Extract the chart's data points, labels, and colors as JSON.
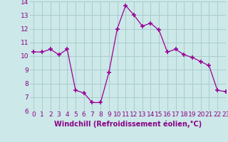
{
  "x": [
    0,
    1,
    2,
    3,
    4,
    5,
    6,
    7,
    8,
    9,
    10,
    11,
    12,
    13,
    14,
    15,
    16,
    17,
    18,
    19,
    20,
    21,
    22,
    23
  ],
  "y": [
    10.3,
    10.3,
    10.5,
    10.1,
    10.5,
    7.5,
    7.3,
    6.6,
    6.6,
    8.8,
    12.0,
    13.7,
    13.0,
    12.2,
    12.4,
    11.9,
    10.3,
    10.5,
    10.1,
    9.9,
    9.6,
    9.3,
    7.5,
    7.4
  ],
  "line_color": "#990099",
  "marker": "+",
  "marker_size": 4,
  "xlabel": "Windchill (Refroidissement éolien,°C)",
  "xlim": [
    -0.5,
    23
  ],
  "ylim": [
    6,
    14
  ],
  "yticks": [
    6,
    7,
    8,
    9,
    10,
    11,
    12,
    13,
    14
  ],
  "xticks": [
    0,
    1,
    2,
    3,
    4,
    5,
    6,
    7,
    8,
    9,
    10,
    11,
    12,
    13,
    14,
    15,
    16,
    17,
    18,
    19,
    20,
    21,
    22,
    23
  ],
  "bg_color": "#cce8e8",
  "grid_color": "#aacccc",
  "tick_label_color": "#880088",
  "xlabel_color": "#880088",
  "xlabel_fontsize": 7,
  "tick_fontsize": 6.5
}
